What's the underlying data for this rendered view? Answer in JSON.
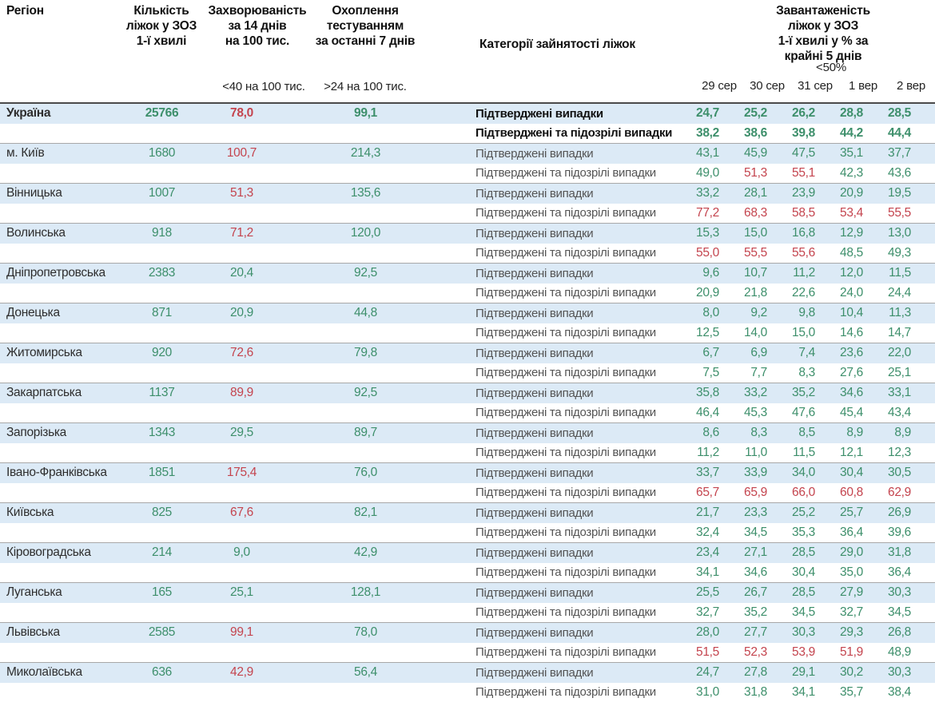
{
  "colors": {
    "green": "#3d8f6b",
    "red": "#c4444e",
    "row_highlight": "#dceaf6",
    "category_text": "#545454",
    "region_text": "#2e2e2e",
    "separator": "#a8a8a8",
    "header_separator": "#4a4a4a"
  },
  "thresholds": {
    "incidence_red_at": 40,
    "occupancy_red_at": 50
  },
  "chart_data": {
    "type": "table",
    "title": "Завантаженість ліжок у ЗОЗ 1-ї хвилі",
    "headers": {
      "region": "Регіон",
      "beds": "Кількість\nліжок у ЗОЗ\n1-ї хвилі",
      "incidence": "Захворюваність\nза 14 днів\nна 100 тис.",
      "testing": "Охоплення\nтестуванням\nза останні 7 днів",
      "categories": "Категорії зайнятості ліжок",
      "occupancy": "Завантаженість ліжок у ЗОЗ\n1-ї хвилі у % за крайні 5 днів",
      "incidence_threshold": "<40 на 100 тис.",
      "testing_threshold": ">24 на 100 тис.",
      "occupancy_threshold": "<50%"
    },
    "dates": [
      "29 сер",
      "30 сер",
      "31 сер",
      "1 вер",
      "2 вер"
    ],
    "category_labels": [
      "Підтверджені випадки",
      "Підтверджені та підозрілі випадки"
    ],
    "regions": [
      {
        "region": "Україна",
        "beds": "25766",
        "incidence": "78,0",
        "testing": "99,1",
        "bold": true,
        "confirmed": [
          "24,7",
          "25,2",
          "26,2",
          "28,8",
          "28,5"
        ],
        "confirmed_suspected": [
          "38,2",
          "38,6",
          "39,8",
          "44,2",
          "44,4"
        ]
      },
      {
        "region": "м. Київ",
        "beds": "1680",
        "incidence": "100,7",
        "testing": "214,3",
        "bold": false,
        "confirmed": [
          "43,1",
          "45,9",
          "47,5",
          "35,1",
          "37,7"
        ],
        "confirmed_suspected": [
          "49,0",
          "51,3",
          "55,1",
          "42,3",
          "43,6"
        ]
      },
      {
        "region": "Вінницька",
        "beds": "1007",
        "incidence": "51,3",
        "testing": "135,6",
        "bold": false,
        "confirmed": [
          "33,2",
          "28,1",
          "23,9",
          "20,9",
          "19,5"
        ],
        "confirmed_suspected": [
          "77,2",
          "68,3",
          "58,5",
          "53,4",
          "55,5"
        ]
      },
      {
        "region": "Волинська",
        "beds": "918",
        "incidence": "71,2",
        "testing": "120,0",
        "bold": false,
        "confirmed": [
          "15,3",
          "15,0",
          "16,8",
          "12,9",
          "13,0"
        ],
        "confirmed_suspected": [
          "55,0",
          "55,5",
          "55,6",
          "48,5",
          "49,3"
        ]
      },
      {
        "region": "Дніпропетровська",
        "beds": "2383",
        "incidence": "20,4",
        "testing": "92,5",
        "bold": false,
        "confirmed": [
          "9,6",
          "10,7",
          "11,2",
          "12,0",
          "11,5"
        ],
        "confirmed_suspected": [
          "20,9",
          "21,8",
          "22,6",
          "24,0",
          "24,4"
        ]
      },
      {
        "region": "Донецька",
        "beds": "871",
        "incidence": "20,9",
        "testing": "44,8",
        "bold": false,
        "confirmed": [
          "8,0",
          "9,2",
          "9,8",
          "10,4",
          "11,3"
        ],
        "confirmed_suspected": [
          "12,5",
          "14,0",
          "15,0",
          "14,6",
          "14,7"
        ]
      },
      {
        "region": "Житомирська",
        "beds": "920",
        "incidence": "72,6",
        "testing": "79,8",
        "bold": false,
        "confirmed": [
          "6,7",
          "6,9",
          "7,4",
          "23,6",
          "22,0"
        ],
        "confirmed_suspected": [
          "7,5",
          "7,7",
          "8,3",
          "27,6",
          "25,1"
        ]
      },
      {
        "region": "Закарпатська",
        "beds": "1137",
        "incidence": "89,9",
        "testing": "92,5",
        "bold": false,
        "confirmed": [
          "35,8",
          "33,2",
          "35,2",
          "34,6",
          "33,1"
        ],
        "confirmed_suspected": [
          "46,4",
          "45,3",
          "47,6",
          "45,4",
          "43,4"
        ]
      },
      {
        "region": "Запорізька",
        "beds": "1343",
        "incidence": "29,5",
        "testing": "89,7",
        "bold": false,
        "confirmed": [
          "8,6",
          "8,3",
          "8,5",
          "8,9",
          "8,9"
        ],
        "confirmed_suspected": [
          "11,2",
          "11,0",
          "11,5",
          "12,1",
          "12,3"
        ]
      },
      {
        "region": "Івано-Франківська",
        "beds": "1851",
        "incidence": "175,4",
        "testing": "76,0",
        "bold": false,
        "confirmed": [
          "33,7",
          "33,9",
          "34,0",
          "30,4",
          "30,5"
        ],
        "confirmed_suspected": [
          "65,7",
          "65,9",
          "66,0",
          "60,8",
          "62,9"
        ]
      },
      {
        "region": "Київська",
        "beds": "825",
        "incidence": "67,6",
        "testing": "82,1",
        "bold": false,
        "confirmed": [
          "21,7",
          "23,3",
          "25,2",
          "25,7",
          "26,9"
        ],
        "confirmed_suspected": [
          "32,4",
          "34,5",
          "35,3",
          "36,4",
          "39,6"
        ]
      },
      {
        "region": "Кіровоградська",
        "beds": "214",
        "incidence": "9,0",
        "testing": "42,9",
        "bold": false,
        "confirmed": [
          "23,4",
          "27,1",
          "28,5",
          "29,0",
          "31,8"
        ],
        "confirmed_suspected": [
          "34,1",
          "34,6",
          "30,4",
          "35,0",
          "36,4"
        ]
      },
      {
        "region": "Луганська",
        "beds": "165",
        "incidence": "25,1",
        "testing": "128,1",
        "bold": false,
        "confirmed": [
          "25,5",
          "26,7",
          "28,5",
          "27,9",
          "30,3"
        ],
        "confirmed_suspected": [
          "32,7",
          "35,2",
          "34,5",
          "32,7",
          "34,5"
        ]
      },
      {
        "region": "Львівська",
        "beds": "2585",
        "incidence": "99,1",
        "testing": "78,0",
        "bold": false,
        "confirmed": [
          "28,0",
          "27,7",
          "30,3",
          "29,3",
          "26,8"
        ],
        "confirmed_suspected": [
          "51,5",
          "52,3",
          "53,9",
          "51,9",
          "48,9"
        ]
      },
      {
        "region": "Миколаївська",
        "beds": "636",
        "incidence": "42,9",
        "testing": "56,4",
        "bold": false,
        "confirmed": [
          "24,7",
          "27,8",
          "29,1",
          "30,2",
          "30,3"
        ],
        "confirmed_suspected": [
          "31,0",
          "31,8",
          "34,1",
          "35,7",
          "38,4"
        ]
      }
    ]
  }
}
